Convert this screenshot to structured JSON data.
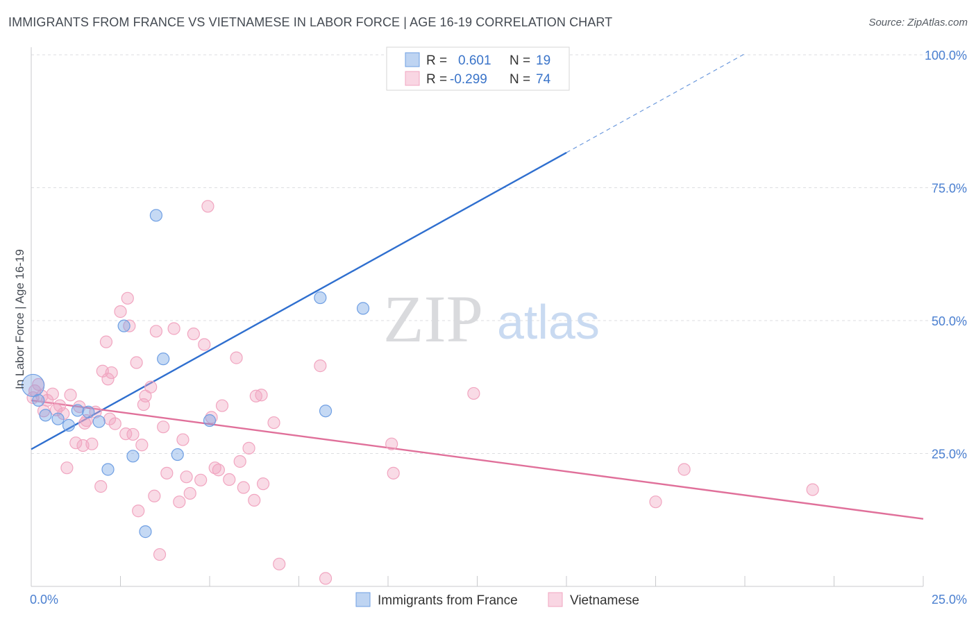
{
  "title": "IMMIGRANTS FROM FRANCE VS VIETNAMESE IN LABOR FORCE | AGE 16-19 CORRELATION CHART",
  "source": "Source: ZipAtlas.com",
  "watermark": {
    "zip": "ZIP",
    "atlas": "atlas"
  },
  "chart_data": {
    "type": "scatter",
    "ylabel": "In Labor Force | Age 16-19",
    "xlim": [
      0,
      25
    ],
    "ylim": [
      0,
      100
    ],
    "x_tick_labels": {
      "left": "0.0%",
      "right": "25.0%"
    },
    "y_ticks": [
      {
        "value": 25,
        "label": "25.0%"
      },
      {
        "value": 50,
        "label": "50.0%"
      },
      {
        "value": 75,
        "label": "75.0%"
      },
      {
        "value": 100,
        "label": "100.0%"
      }
    ],
    "grid": true,
    "legend_position": "top-center",
    "series": [
      {
        "name": "Immigrants from France",
        "color": "#6f9fe3",
        "line_color": "#2f6fcf",
        "R": "0.601",
        "N": "19",
        "R_label": "R =",
        "N_label": "N =",
        "trend": {
          "x0": 0,
          "y0": 25.8,
          "x1": 15,
          "y1": 81.6,
          "dash_to_x": 20
        },
        "points": [
          [
            0.05,
            37.8
          ],
          [
            0.2,
            35.0
          ],
          [
            0.4,
            32.2
          ],
          [
            0.75,
            31.5
          ],
          [
            1.05,
            30.3
          ],
          [
            1.3,
            33.1
          ],
          [
            1.6,
            32.8
          ],
          [
            1.9,
            31.0
          ],
          [
            2.15,
            22.0
          ],
          [
            2.6,
            49.0
          ],
          [
            2.85,
            24.5
          ],
          [
            3.2,
            10.3
          ],
          [
            3.5,
            69.8
          ],
          [
            3.7,
            42.8
          ],
          [
            4.1,
            24.8
          ],
          [
            5.0,
            31.2
          ],
          [
            8.1,
            54.3
          ],
          [
            8.25,
            33.0
          ],
          [
            9.3,
            52.3
          ]
        ]
      },
      {
        "name": "Vietnamese",
        "color": "#f1a5c0",
        "line_color": "#e0709a",
        "R": "-0.299",
        "N": "74",
        "R_label": "R =",
        "N_label": "N =",
        "trend": {
          "x0": 0,
          "y0": 35.0,
          "x1": 25,
          "y1": 12.7
        },
        "points": [
          [
            0.05,
            35.5
          ],
          [
            0.1,
            36.8
          ],
          [
            0.2,
            38.0
          ],
          [
            0.3,
            35.8
          ],
          [
            0.45,
            35.0
          ],
          [
            0.6,
            36.2
          ],
          [
            0.7,
            33.2
          ],
          [
            0.8,
            34.0
          ],
          [
            0.9,
            32.5
          ],
          [
            1.0,
            22.3
          ],
          [
            1.1,
            36.0
          ],
          [
            1.25,
            27.0
          ],
          [
            1.35,
            33.8
          ],
          [
            1.45,
            26.5
          ],
          [
            1.55,
            31.2
          ],
          [
            1.7,
            26.8
          ],
          [
            1.8,
            32.8
          ],
          [
            1.95,
            18.8
          ],
          [
            2.0,
            40.5
          ],
          [
            2.1,
            46.0
          ],
          [
            2.15,
            39.0
          ],
          [
            2.25,
            40.2
          ],
          [
            2.35,
            30.6
          ],
          [
            2.5,
            51.7
          ],
          [
            2.65,
            28.7
          ],
          [
            2.7,
            54.2
          ],
          [
            2.75,
            49.0
          ],
          [
            2.85,
            28.6
          ],
          [
            2.95,
            42.1
          ],
          [
            3.0,
            14.2
          ],
          [
            3.1,
            26.6
          ],
          [
            3.15,
            34.2
          ],
          [
            3.2,
            35.8
          ],
          [
            3.35,
            37.5
          ],
          [
            3.45,
            17.0
          ],
          [
            3.5,
            48.0
          ],
          [
            3.6,
            6.0
          ],
          [
            3.7,
            30.0
          ],
          [
            3.8,
            21.3
          ],
          [
            4.0,
            48.5
          ],
          [
            4.15,
            15.9
          ],
          [
            4.25,
            27.6
          ],
          [
            4.35,
            20.6
          ],
          [
            4.45,
            17.5
          ],
          [
            4.55,
            47.5
          ],
          [
            4.75,
            20.0
          ],
          [
            4.85,
            45.5
          ],
          [
            4.95,
            71.5
          ],
          [
            5.05,
            31.8
          ],
          [
            5.15,
            22.3
          ],
          [
            5.25,
            21.9
          ],
          [
            5.35,
            34.0
          ],
          [
            5.55,
            20.1
          ],
          [
            5.75,
            43.0
          ],
          [
            5.85,
            23.5
          ],
          [
            5.95,
            18.6
          ],
          [
            6.1,
            26.0
          ],
          [
            6.25,
            16.2
          ],
          [
            6.3,
            35.8
          ],
          [
            6.45,
            36.0
          ],
          [
            6.5,
            19.3
          ],
          [
            6.8,
            30.8
          ],
          [
            6.95,
            4.2
          ],
          [
            8.1,
            41.5
          ],
          [
            8.25,
            1.5
          ],
          [
            10.1,
            26.8
          ],
          [
            10.15,
            21.3
          ],
          [
            12.4,
            36.3
          ],
          [
            17.5,
            15.9
          ],
          [
            18.3,
            22.0
          ],
          [
            21.9,
            18.2
          ],
          [
            0.35,
            33.0
          ],
          [
            1.5,
            30.7
          ],
          [
            2.2,
            31.5
          ]
        ]
      }
    ]
  }
}
